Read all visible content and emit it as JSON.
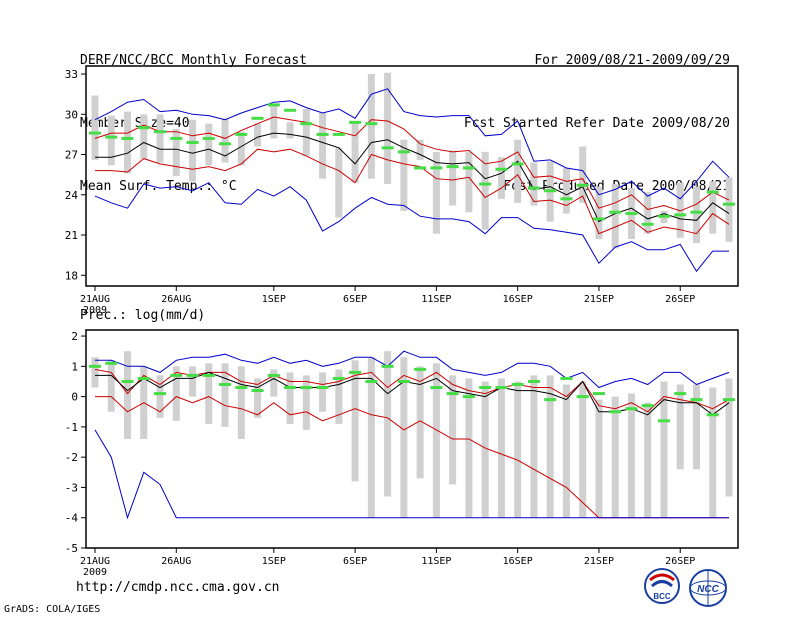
{
  "header": {
    "title": "DERF/NCC/BCC Monthly Forecast",
    "member_size": "Member Size=40",
    "variable": "Mean Surf. Temp.: °C",
    "period": "For 2009/08/21-2009/09/29",
    "fcst_started": "Fcst Started Refer Date 2009/08/20",
    "fcst_produced": "Fcst Produced Date 2009/08/21"
  },
  "subtitle": "Prec.: log(mm/d)",
  "footer": {
    "url": "http://cmdp.ncc.cma.gov.cn",
    "credit": "GrADS: COLA/IGES",
    "logo_bcc": "BCC",
    "logo_ncc": "NCC"
  },
  "colors": {
    "maximum": "#0000cc",
    "minimum_and_bounds": "#cc0000",
    "ensemble_mean": "#000000",
    "member_box": "#d0d0d0",
    "observed_marker": "#44dd44"
  },
  "chart_data": [
    {
      "type": "line",
      "title": "Mean Surf. Temp.: °C",
      "x_tick_labels": [
        "21AUG",
        "26AUG",
        "1SEP",
        "6SEP",
        "11SEP",
        "16SEP",
        "21SEP",
        "26SEP"
      ],
      "x_tick_days": [
        0,
        5,
        11,
        16,
        21,
        26,
        31,
        36
      ],
      "year_label": "2009",
      "days": 40,
      "ylim": [
        17.2,
        33.6
      ],
      "y_ticks": [
        18,
        21,
        24,
        27,
        30,
        33
      ],
      "series": [
        {
          "name": "maximum",
          "color": "#0000cc",
          "values": [
            29.6,
            30.2,
            30.9,
            31.1,
            30.2,
            30.3,
            30.0,
            29.9,
            29.6,
            30.1,
            30.5,
            30.9,
            31.0,
            30.5,
            30.1,
            30.4,
            29.7,
            31.5,
            31.9,
            30.2,
            29.9,
            29.8,
            29.9,
            29.9,
            28.4,
            28.5,
            29.5,
            26.5,
            26.6,
            26.0,
            25.8,
            24.0,
            24.4,
            25.0,
            23.9,
            24.5,
            23.7,
            25.0,
            26.5,
            25.3
          ]
        },
        {
          "name": "upper",
          "color": "#cc0000",
          "values": [
            28.2,
            28.6,
            28.6,
            29.2,
            28.7,
            28.7,
            28.4,
            28.6,
            28.2,
            28.8,
            29.3,
            29.8,
            29.6,
            29.4,
            29.0,
            28.7,
            28.4,
            29.6,
            29.5,
            28.9,
            27.8,
            27.4,
            27.2,
            27.3,
            26.3,
            26.5,
            27.2,
            25.3,
            25.4,
            25.0,
            25.2,
            23.0,
            23.4,
            24.0,
            22.9,
            23.2,
            22.8,
            23.3,
            24.2,
            23.6
          ]
        },
        {
          "name": "mean",
          "color": "#000000",
          "values": [
            26.8,
            26.8,
            27.1,
            27.9,
            27.4,
            27.4,
            27.1,
            27.4,
            26.9,
            27.6,
            28.3,
            28.6,
            28.5,
            28.3,
            27.9,
            27.5,
            26.3,
            27.9,
            28.1,
            27.5,
            27.0,
            26.4,
            26.3,
            26.4,
            25.2,
            25.6,
            26.5,
            24.4,
            24.6,
            24.0,
            24.6,
            22.0,
            22.6,
            23.0,
            22.2,
            22.6,
            22.2,
            22.1,
            23.4,
            22.6
          ]
        },
        {
          "name": "lower",
          "color": "#cc0000",
          "values": [
            25.8,
            25.8,
            25.7,
            26.7,
            26.3,
            26.1,
            25.9,
            26.1,
            25.8,
            26.3,
            27.4,
            27.2,
            27.4,
            26.9,
            26.3,
            25.8,
            24.9,
            27.0,
            26.6,
            26.3,
            26.1,
            25.2,
            25.1,
            25.3,
            23.8,
            24.5,
            25.5,
            23.5,
            23.6,
            23.2,
            23.9,
            21.1,
            21.6,
            22.1,
            21.2,
            21.6,
            21.4,
            21.1,
            22.6,
            21.8
          ]
        },
        {
          "name": "minimum",
          "color": "#0000cc",
          "values": [
            23.9,
            23.4,
            23.0,
            24.8,
            24.5,
            24.6,
            24.3,
            24.9,
            23.4,
            23.3,
            24.4,
            23.9,
            24.6,
            23.6,
            21.3,
            22.0,
            23.0,
            23.8,
            23.3,
            23.2,
            22.4,
            22.2,
            22.2,
            22.0,
            21.1,
            22.3,
            22.3,
            21.5,
            21.4,
            21.2,
            21.0,
            18.9,
            20.1,
            20.5,
            19.9,
            19.9,
            20.3,
            18.3,
            19.8,
            19.8
          ]
        }
      ],
      "member_range": {
        "low": [
          26.6,
          26.2,
          25.6,
          26.7,
          26.4,
          25.4,
          25.0,
          26.2,
          26.4,
          26.2,
          27.6,
          28.2,
          28.2,
          26.9,
          25.2,
          22.3,
          24.9,
          25.2,
          24.8,
          22.8,
          26.6,
          21.1,
          23.2,
          22.7,
          21.4,
          23.7,
          23.4,
          23.2,
          22.0,
          22.6,
          23.4,
          20.7,
          20.0,
          20.7,
          21.1,
          21.9,
          20.8,
          20.4,
          21.1,
          20.5
        ],
        "high": [
          31.4,
          29.9,
          30.2,
          30.0,
          30.0,
          28.9,
          29.6,
          29.3,
          29.7,
          28.7,
          29.3,
          30.6,
          29.4,
          30.4,
          30.1,
          27.5,
          29.3,
          33.0,
          33.1,
          28.1,
          28.1,
          27.2,
          27.3,
          27.2,
          27.2,
          26.8,
          28.1,
          26.4,
          26.5,
          26.0,
          27.6,
          24.6,
          24.8,
          24.5,
          24.2,
          22.8,
          24.9,
          24.6,
          25.0,
          25.3
        ]
      },
      "observed": [
        28.6,
        28.3,
        28.2,
        29.0,
        28.7,
        28.2,
        27.9,
        28.2,
        27.8,
        28.5,
        29.7,
        30.7,
        30.3,
        29.3,
        28.5,
        28.5,
        29.4,
        29.3,
        27.5,
        27.2,
        26.0,
        26.0,
        26.1,
        26.0,
        24.8,
        25.9,
        26.3,
        24.5,
        24.3,
        23.7,
        24.7,
        22.2,
        22.7,
        22.6,
        21.8,
        22.4,
        22.5,
        22.7,
        24.2,
        23.3
      ]
    },
    {
      "type": "line",
      "title": "Prec.: log(mm/d)",
      "x_tick_labels": [
        "21AUG",
        "26AUG",
        "1SEP",
        "6SEP",
        "11SEP",
        "16SEP",
        "21SEP",
        "26SEP"
      ],
      "x_tick_days": [
        0,
        5,
        11,
        16,
        21,
        26,
        31,
        36
      ],
      "year_label": "2009",
      "days": 40,
      "ylim": [
        -5,
        2.2
      ],
      "y_ticks": [
        -5,
        -4,
        -3,
        -2,
        -1,
        0,
        1,
        2
      ],
      "series": [
        {
          "name": "maximum",
          "color": "#0000cc",
          "values": [
            1.2,
            1.2,
            1.0,
            1.0,
            0.8,
            1.2,
            1.3,
            1.3,
            1.4,
            1.2,
            1.1,
            1.3,
            1.1,
            1.2,
            1.0,
            1.1,
            1.3,
            1.3,
            1.0,
            1.5,
            1.3,
            1.3,
            0.9,
            0.8,
            0.7,
            0.8,
            1.1,
            1.1,
            1.0,
            0.6,
            0.8,
            0.3,
            0.5,
            0.6,
            0.4,
            0.8,
            0.8,
            0.4,
            0.6,
            0.8
          ]
        },
        {
          "name": "upper",
          "color": "#cc0000",
          "values": [
            0.9,
            0.8,
            0.1,
            0.7,
            0.4,
            0.8,
            0.7,
            0.8,
            0.8,
            0.5,
            0.4,
            0.7,
            0.5,
            0.5,
            0.4,
            0.5,
            0.7,
            0.8,
            0.3,
            0.7,
            0.5,
            0.8,
            0.4,
            0.2,
            0.1,
            0.3,
            0.4,
            0.3,
            0.3,
            0.0,
            0.5,
            -0.3,
            -0.4,
            -0.2,
            -0.5,
            0.0,
            -0.1,
            -0.2,
            -0.4,
            -0.1
          ]
        },
        {
          "name": "mean",
          "color": "#000000",
          "values": [
            0.7,
            0.7,
            0.2,
            0.6,
            0.3,
            0.6,
            0.6,
            0.8,
            0.6,
            0.4,
            0.3,
            0.6,
            0.3,
            0.3,
            0.3,
            0.4,
            0.6,
            0.6,
            0.1,
            0.5,
            0.4,
            0.6,
            0.2,
            0.1,
            0.0,
            0.3,
            0.2,
            0.2,
            0.1,
            -0.1,
            0.5,
            -0.5,
            -0.5,
            -0.4,
            -0.6,
            -0.1,
            -0.2,
            -0.2,
            -0.6,
            -0.2
          ]
        },
        {
          "name": "lower",
          "color": "#cc0000",
          "values": [
            0.0,
            0.0,
            -0.5,
            -0.2,
            -0.5,
            0.0,
            -0.2,
            0.0,
            -0.3,
            -0.4,
            -0.6,
            -0.2,
            -0.6,
            -0.5,
            -0.8,
            -0.6,
            -0.4,
            -0.6,
            -0.7,
            -1.1,
            -0.8,
            -1.1,
            -1.4,
            -1.4,
            -1.7,
            -1.9,
            -2.1,
            -2.4,
            -2.7,
            -3.0,
            -3.5,
            -4.0,
            -4.0,
            -4.0,
            -4.0,
            -4.0,
            -4.0,
            -4.0,
            -4.0,
            -4.0
          ]
        },
        {
          "name": "minimum",
          "color": "#0000cc",
          "values": [
            -1.1,
            -2.0,
            -4.0,
            -2.5,
            -2.9,
            -4.0,
            -4.0,
            -4.0,
            -4.0,
            -4.0,
            -4.0,
            -4.0,
            -4.0,
            -4.0,
            -4.0,
            -4.0,
            -4.0,
            -4.0,
            -4.0,
            -4.0,
            -4.0,
            -4.0,
            -4.0,
            -4.0,
            -4.0,
            -4.0,
            -4.0,
            -4.0,
            -4.0,
            -4.0,
            -4.0,
            -4.0,
            -4.0,
            -4.0,
            -4.0,
            -4.0,
            -4.0,
            -4.0,
            -4.0,
            -4.0
          ]
        }
      ],
      "member_range": {
        "low": [
          0.3,
          -0.5,
          -1.4,
          -1.4,
          -0.7,
          -0.8,
          0.0,
          -0.9,
          -1.0,
          -1.4,
          -0.7,
          0.0,
          -0.9,
          -1.1,
          -0.5,
          -0.9,
          -2.8,
          -4.0,
          -3.3,
          -4.0,
          -2.7,
          -4.0,
          -2.9,
          -4.0,
          -4.0,
          -4.0,
          -4.0,
          -4.0,
          -4.0,
          -4.0,
          -4.0,
          -4.0,
          -4.0,
          -4.0,
          -4.0,
          -4.0,
          -2.4,
          -2.4,
          -4.0,
          -3.3
        ],
        "high": [
          1.3,
          1.2,
          1.5,
          1.0,
          0.7,
          1.0,
          1.0,
          1.1,
          1.1,
          1.0,
          0.6,
          0.9,
          0.8,
          0.7,
          0.8,
          0.9,
          1.2,
          1.3,
          1.5,
          1.3,
          1.0,
          1.1,
          0.7,
          0.6,
          0.5,
          0.6,
          0.5,
          0.7,
          0.7,
          0.4,
          0.5,
          -0.1,
          0.0,
          0.1,
          -0.2,
          0.5,
          0.4,
          0.4,
          0.3,
          0.6
        ]
      },
      "observed": [
        1.0,
        1.1,
        0.5,
        0.6,
        0.1,
        0.7,
        0.7,
        0.7,
        0.4,
        0.3,
        0.2,
        0.7,
        0.3,
        0.3,
        0.3,
        0.6,
        0.8,
        0.5,
        1.0,
        0.5,
        0.9,
        0.3,
        0.1,
        0.0,
        0.3,
        0.3,
        0.4,
        0.5,
        -0.1,
        0.6,
        0.0,
        0.1,
        -0.5,
        -0.4,
        -0.3,
        -0.8,
        0.1,
        -0.1,
        -0.6,
        -0.1
      ]
    }
  ]
}
